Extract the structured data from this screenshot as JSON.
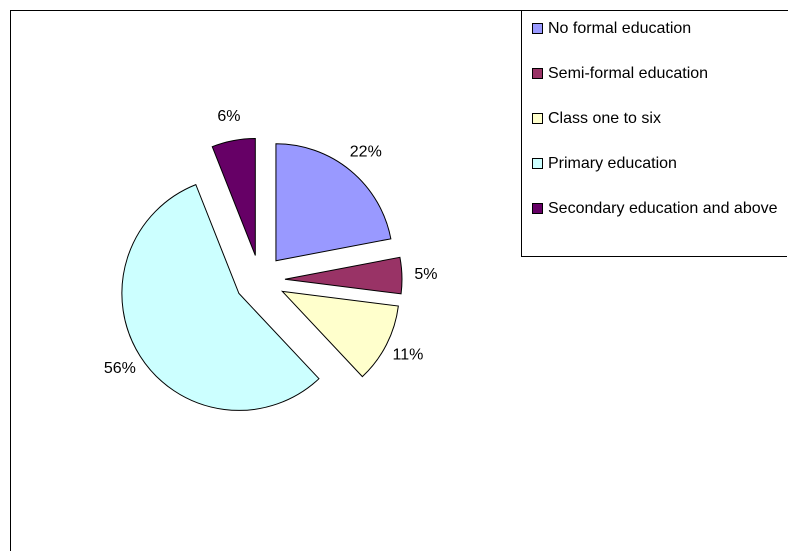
{
  "chart_data": {
    "type": "pie",
    "categories": [
      "No formal education",
      "Semi-formal education",
      "Class one to six",
      "Primary education",
      "Secondary education and above"
    ],
    "values": [
      22,
      5,
      11,
      56,
      6
    ],
    "value_labels": [
      "22%",
      "5%",
      "11%",
      "56%",
      "6%"
    ],
    "colors": [
      "#9999ff",
      "#993366",
      "#ffffcc",
      "#ccffff",
      "#660066"
    ],
    "legend": "top-right"
  }
}
